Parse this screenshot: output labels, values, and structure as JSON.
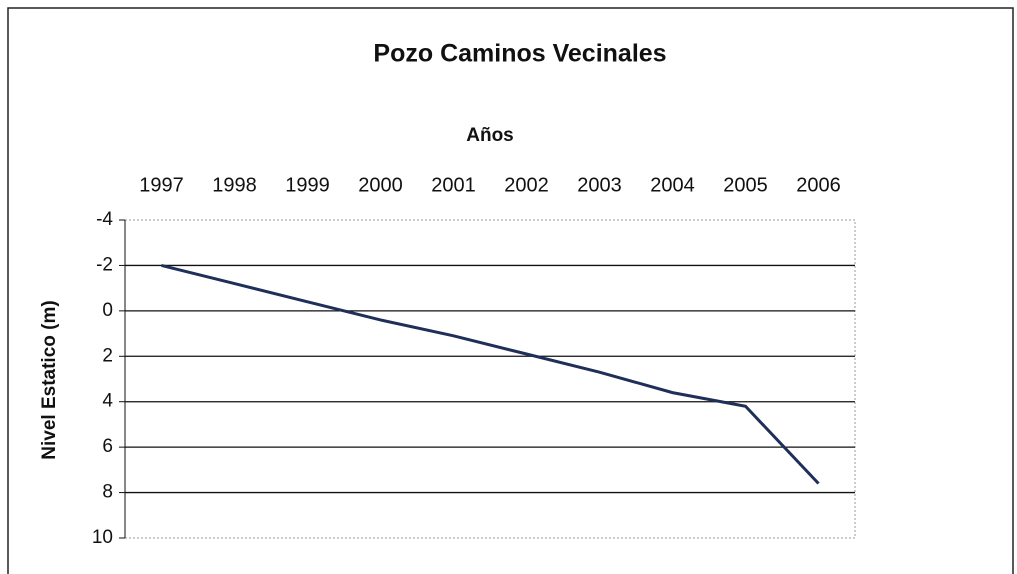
{
  "chart_data": {
    "type": "line",
    "title": "Pozo Caminos Vecinales",
    "x_label": "Años",
    "y_label": "Nivel Estatico (m)",
    "categories": [
      "1997",
      "1998",
      "1999",
      "2000",
      "2001",
      "2002",
      "2003",
      "2004",
      "2005",
      "2006"
    ],
    "series": [
      {
        "name": "Nivel Estatico",
        "color": "#1f2f5a",
        "values": [
          -2,
          -1.2,
          -0.4,
          0.4,
          1.1,
          1.9,
          2.7,
          3.6,
          4.2,
          7.6
        ]
      }
    ],
    "ylim": [
      -4,
      10
    ],
    "yticks": [
      -4,
      -2,
      0,
      2,
      4,
      6,
      8,
      10
    ],
    "y_inverted": true,
    "grid": true
  }
}
